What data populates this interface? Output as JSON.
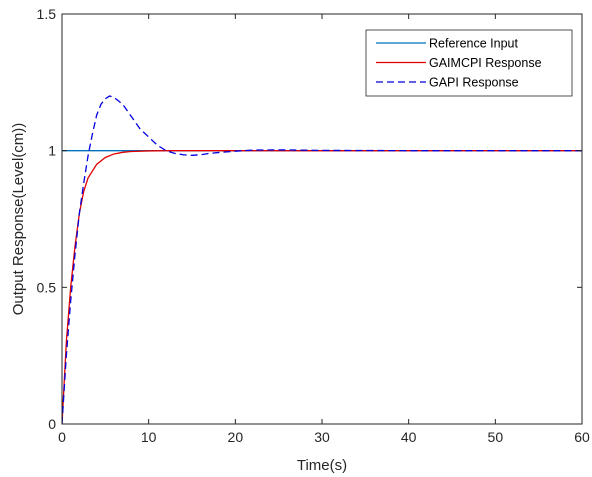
{
  "chart_data": {
    "type": "line",
    "xlabel": "Time(s)",
    "ylabel": "Output Response(Level(cm))",
    "xlim": [
      0,
      60
    ],
    "ylim": [
      0,
      1.5
    ],
    "x_ticks": [
      0,
      10,
      20,
      30,
      40,
      50,
      60
    ],
    "y_ticks": [
      0,
      0.5,
      1,
      1.5
    ],
    "x_tick_labels": [
      "0",
      "10",
      "20",
      "30",
      "40",
      "50",
      "60"
    ],
    "y_tick_labels": [
      "0",
      "0.5",
      "1",
      "1.5"
    ],
    "grid": false,
    "legend_position": "top-right",
    "series": [
      {
        "name": "Reference Input",
        "color": "#0072BD",
        "style": "solid",
        "x": [
          0,
          60
        ],
        "y": [
          1,
          1
        ]
      },
      {
        "name": "GAIMCPI Response",
        "color": "#E00000",
        "style": "solid",
        "x": [
          0,
          0.5,
          1,
          1.5,
          2,
          2.5,
          3,
          4,
          5,
          6,
          7,
          8,
          10,
          12,
          15,
          20,
          30,
          40,
          50,
          60
        ],
        "y": [
          0,
          0.3,
          0.5,
          0.65,
          0.77,
          0.85,
          0.9,
          0.95,
          0.975,
          0.988,
          0.994,
          0.997,
          0.999,
          1,
          1,
          1,
          1,
          1,
          1,
          1
        ]
      },
      {
        "name": "GAPI Response",
        "color": "#0000E0",
        "style": "dashed",
        "x": [
          0,
          0.5,
          1,
          1.5,
          2,
          2.5,
          3,
          3.5,
          4,
          4.5,
          5,
          5.5,
          6,
          7,
          8,
          9,
          10,
          11,
          12,
          13,
          14,
          15,
          16,
          17,
          18,
          20,
          22,
          25,
          30,
          40,
          50,
          60
        ],
        "y": [
          0,
          0.25,
          0.45,
          0.62,
          0.77,
          0.88,
          0.98,
          1.06,
          1.13,
          1.17,
          1.19,
          1.2,
          1.195,
          1.17,
          1.125,
          1.08,
          1.05,
          1.02,
          1.0,
          0.99,
          0.985,
          0.983,
          0.985,
          0.99,
          0.993,
          0.998,
          1.002,
          1.003,
          1.001,
          1,
          1,
          1
        ]
      }
    ]
  }
}
